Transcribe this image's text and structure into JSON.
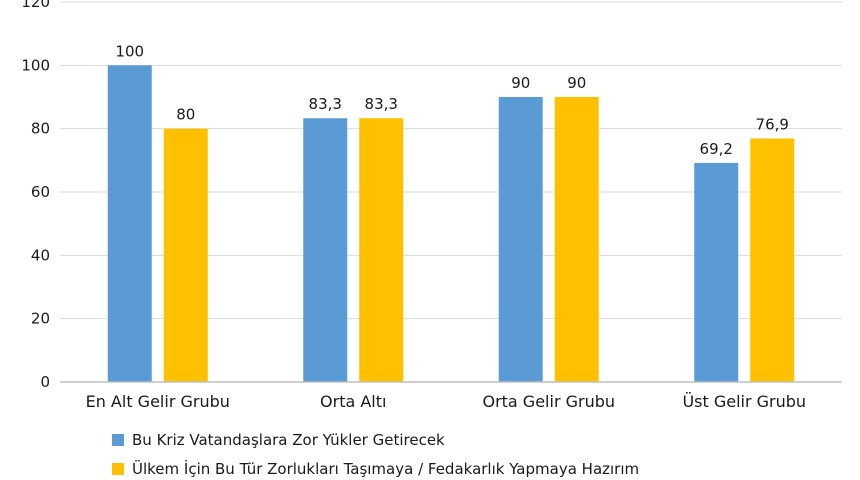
{
  "chart_data": {
    "type": "bar",
    "categories": [
      "En Alt Gelir Grubu",
      "Orta Altı",
      "Orta Gelir Grubu",
      "Üst Gelir Grubu"
    ],
    "series": [
      {
        "name": "Bu Kriz Vatandaşlara Zor Yükler Getirecek",
        "color": "#5b9bd5",
        "values": [
          100,
          83.3,
          90,
          69.2
        ],
        "labels": [
          "100",
          "83,3",
          "90",
          "69,2"
        ]
      },
      {
        "name": "Ülkem İçin Bu Tür Zorlukları Taşımaya / Fedakarlık Yapmaya Hazırım",
        "color": "#ffc000",
        "values": [
          80,
          83.3,
          90,
          76.9
        ],
        "labels": [
          "80",
          "83,3",
          "90",
          "76,9"
        ]
      }
    ],
    "ylim": [
      0,
      120
    ],
    "yticks": [
      "0",
      "20",
      "40",
      "60",
      "80",
      "100",
      "120"
    ],
    "grid": true,
    "legend_position": "bottom-left"
  }
}
